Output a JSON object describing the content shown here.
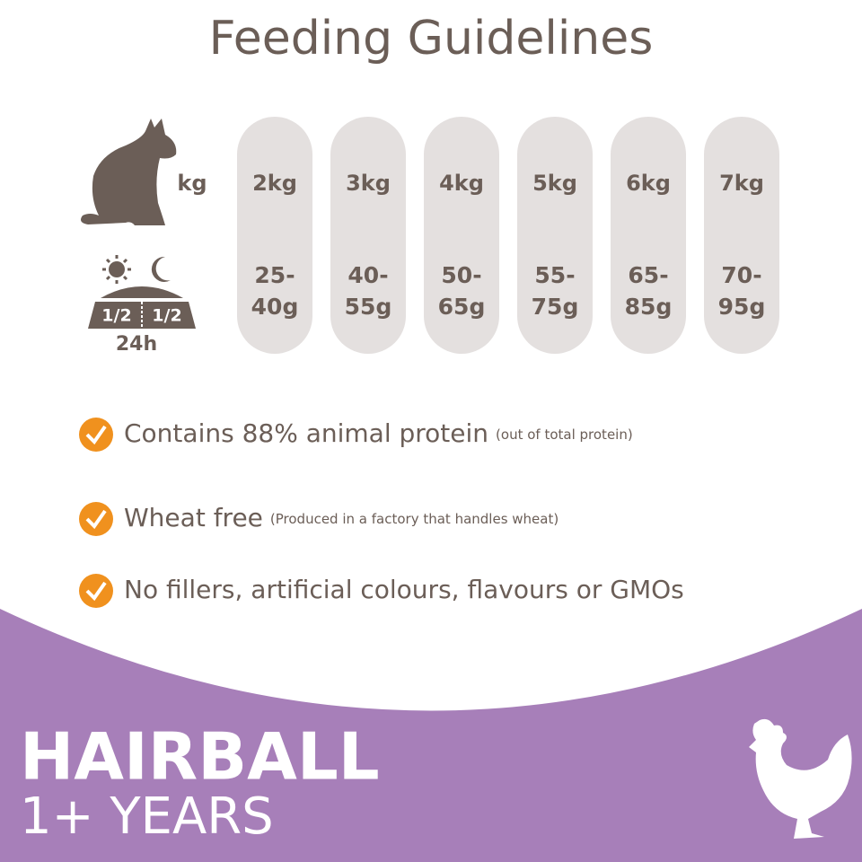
{
  "header": {
    "title": "Feeding Guidelines"
  },
  "table": {
    "weight_label": "kg",
    "columns": [
      {
        "weight": "2kg",
        "amount": [
          "25-",
          "40g"
        ]
      },
      {
        "weight": "3kg",
        "amount": [
          "40-",
          "55g"
        ]
      },
      {
        "weight": "4kg",
        "amount": [
          "50-",
          "65g"
        ]
      },
      {
        "weight": "5kg",
        "amount": [
          "55-",
          "75g"
        ]
      },
      {
        "weight": "6kg",
        "amount": [
          "65-",
          "85g"
        ]
      },
      {
        "weight": "7kg",
        "amount": [
          "70-",
          "95g"
        ]
      }
    ],
    "portion_icon": {
      "left": "1/2",
      "right": "1/2",
      "period": "24h"
    }
  },
  "features": [
    {
      "text": "Contains 88% animal protein",
      "note": "(out of total protein)"
    },
    {
      "text": "Wheat free",
      "note": "(Produced in a factory that handles wheat)"
    },
    {
      "text": "No fillers, artificial colours, flavours or GMOs",
      "note": null
    }
  ],
  "footer": {
    "line1": "HAIRBALL",
    "line2": "1+ YEARS"
  }
}
